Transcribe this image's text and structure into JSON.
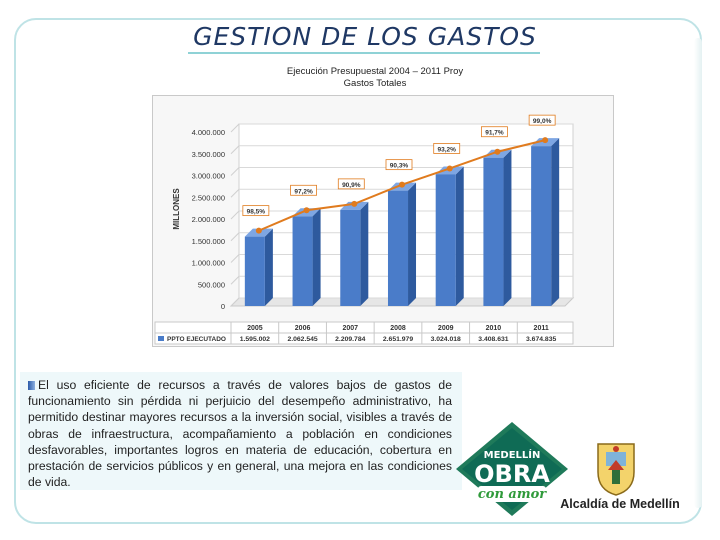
{
  "slide": {
    "title": "GESTION DE LOS GASTOS",
    "body_text": "El uso eficiente de recursos a través de valores bajos de gastos de funcionamiento sin pérdida ni perjuicio del desempeño administrativo, ha permitido destinar mayores recursos a la inversión social, visibles a través de obras de infraestructura, acompañamiento a población en condiciones desfavorables, importantes logros en materia de educación, cobertura en prestación de servicios públicos y en general, una mejora en las condiciones de vida.",
    "logo": {
      "line1": "MEDELLÍN",
      "line2": "OBRA",
      "line3": "con amor"
    },
    "alcaldia": "Alcaldía de Medellín"
  },
  "chart_data": {
    "type": "bar",
    "title": "Ejecución Presupuestal 2004 – 2011 Proy",
    "subtitle": "Gastos Totales",
    "ylabel": "MILLONES",
    "ylim": [
      0,
      4000000
    ],
    "yticks": [
      "0",
      "500.000",
      "1.000.000",
      "1.500.000",
      "2.000.000",
      "2.500.000",
      "3.000.000",
      "3.500.000",
      "4.000.000"
    ],
    "categories": [
      "2005",
      "2006",
      "2007",
      "2008",
      "2009",
      "2010",
      "2011"
    ],
    "series": [
      {
        "name": "PPTO EJECUTADO",
        "values": [
          1595002,
          2062545,
          2209784,
          2651979,
          3024018,
          3408631,
          3674835
        ]
      }
    ],
    "table_values": [
      "1.595.002",
      "2.062.545",
      "2.209.784",
      "2.651.979",
      "3.024.018",
      "3.408.631",
      "3.674.835"
    ],
    "line_labels": [
      "98,5%",
      "97,2%",
      "90,9%",
      "90,3%",
      "93,2%",
      "91,7%",
      "99,0%"
    ],
    "colors": {
      "bar": "#4a7cc9",
      "bar_dark": "#2e5a9e",
      "line": "#e07b1e",
      "label_border": "#e07b1e"
    },
    "grid": true,
    "legend_position": "bottom-table"
  }
}
